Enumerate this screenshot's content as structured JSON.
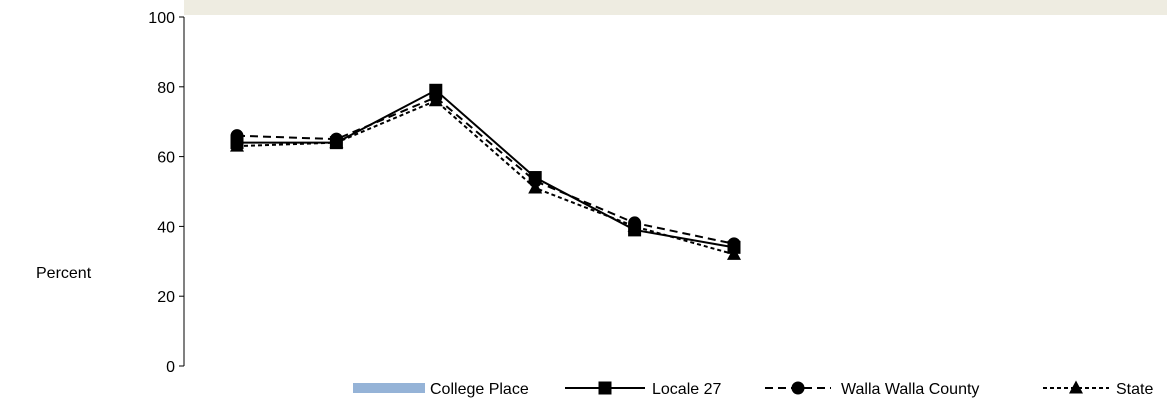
{
  "chart_data": {
    "type": "line",
    "title": "",
    "xlabel": "",
    "ylabel": "Percent",
    "ylim": [
      0,
      100
    ],
    "yticks": [
      0,
      20,
      40,
      60,
      80,
      100
    ],
    "x_count": 6,
    "grid": false,
    "legend_position": "bottom",
    "series": [
      {
        "name": "College Place",
        "values": [],
        "color": "#95b3d7",
        "marker": "none",
        "linestyle": "bar"
      },
      {
        "name": "Locale 27",
        "values": [
          64,
          64,
          79,
          54,
          39,
          34
        ],
        "color": "#000000",
        "marker": "square",
        "linestyle": "solid"
      },
      {
        "name": "Walla Walla County",
        "values": [
          66,
          65,
          77,
          53,
          41,
          35
        ],
        "color": "#000000",
        "marker": "circle",
        "linestyle": "dashed"
      },
      {
        "name": "State",
        "values": [
          63,
          64,
          76,
          51,
          40,
          32
        ],
        "color": "#000000",
        "marker": "triangle",
        "linestyle": "short-dash"
      }
    ]
  }
}
